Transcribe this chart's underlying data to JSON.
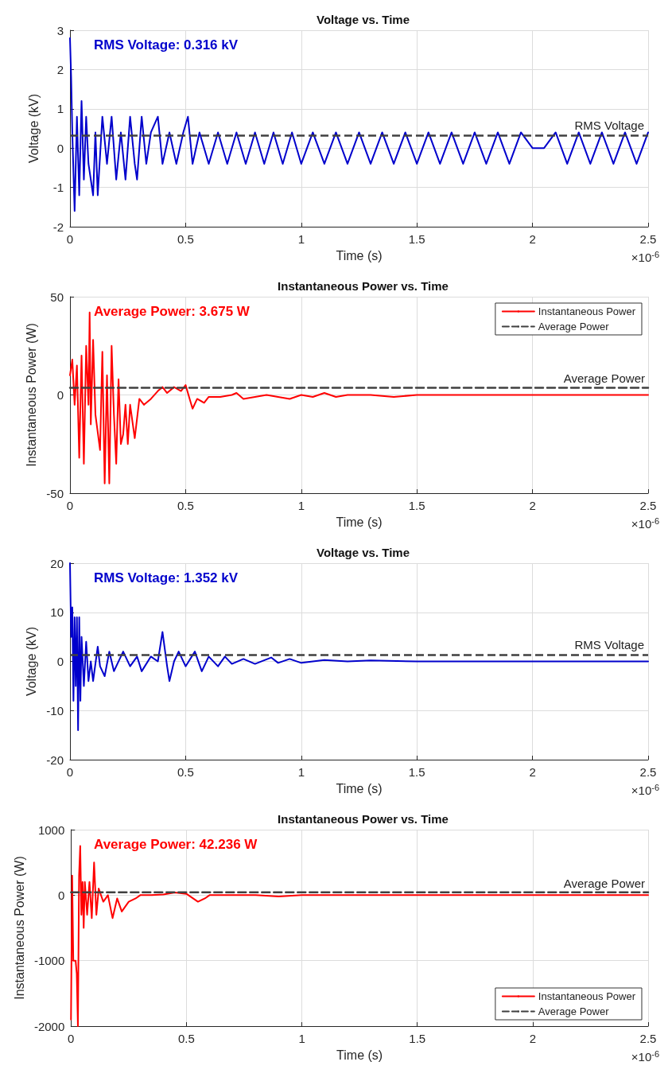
{
  "chart_data": [
    {
      "type": "line",
      "title": "Voltage vs. Time",
      "xlabel": "Time (s)",
      "ylabel": "Voltage (kV)",
      "xlim": [
        0,
        2.5
      ],
      "xticks": [
        0,
        0.5,
        1,
        1.5,
        2,
        2.5
      ],
      "ylim": [
        -2,
        3
      ],
      "yticks": [
        -2,
        -1,
        0,
        1,
        2,
        3
      ],
      "grid": true,
      "legend": false,
      "line_style": "solid",
      "series": [
        {
          "color": "#0000cc",
          "x": [
            0,
            0.005,
            0.01,
            0.02,
            0.03,
            0.04,
            0.05,
            0.06,
            0.07,
            0.08,
            0.1,
            0.11,
            0.12,
            0.14,
            0.16,
            0.18,
            0.2,
            0.22,
            0.24,
            0.26,
            0.28,
            0.29,
            0.31,
            0.33,
            0.35,
            0.38,
            0.4,
            0.43,
            0.46,
            0.49,
            0.51,
            0.53,
            0.56,
            0.6,
            0.64,
            0.68,
            0.72,
            0.76,
            0.8,
            0.84,
            0.88,
            0.92,
            0.96,
            1,
            1.05,
            1.1,
            1.15,
            1.2,
            1.25,
            1.3,
            1.35,
            1.4,
            1.45,
            1.5,
            1.55,
            1.6,
            1.65,
            1.7,
            1.75,
            1.8,
            1.85,
            1.9,
            1.95,
            2,
            2.05,
            2.1,
            2.15,
            2.2,
            2.25,
            2.3,
            2.35,
            2.4,
            2.45,
            2.5
          ],
          "values": [
            2.8,
            1.8,
            0.4,
            -1.6,
            0.8,
            -1.2,
            1.2,
            -0.8,
            0.8,
            -0.4,
            -1.2,
            0.4,
            -1.2,
            0.8,
            -0.4,
            0.8,
            -0.8,
            0.4,
            -0.8,
            0.8,
            -0.4,
            -0.8,
            0.8,
            -0.4,
            0.4,
            0.8,
            -0.4,
            0.4,
            -0.4,
            0.4,
            0.8,
            -0.4,
            0.4,
            -0.4,
            0.4,
            -0.4,
            0.4,
            -0.4,
            0.4,
            -0.4,
            0.4,
            -0.4,
            0.4,
            -0.4,
            0.4,
            -0.4,
            0.4,
            -0.4,
            0.4,
            -0.4,
            0.4,
            -0.4,
            0.4,
            -0.4,
            0.4,
            -0.4,
            0.4,
            -0.4,
            0.4,
            -0.4,
            0.4,
            -0.4,
            0.4,
            0,
            0,
            0.4,
            -0.4,
            0.4,
            -0.4,
            0.4,
            -0.4,
            0.4,
            -0.4,
            0.4
          ]
        }
      ],
      "ref_lines": [
        {
          "axis": "y",
          "value": 0.316,
          "label": "RMS Voltage",
          "color": "#404040",
          "line_style": "dashed"
        }
      ],
      "annotations": [
        "RMS Voltage: 0.316 kV",
        "×10$^{-6}$"
      ]
    },
    {
      "type": "line",
      "title": "Instantaneous Power vs. Time",
      "xlabel": "Time (s)",
      "ylabel": "Instantaneous Power (W)",
      "xlim": [
        0,
        2.5
      ],
      "xticks": [
        0,
        0.5,
        1,
        1.5,
        2,
        2.5
      ],
      "ylim": [
        -50,
        50
      ],
      "yticks": [
        -50,
        0,
        50
      ],
      "grid": true,
      "legend": "top right",
      "series": [
        {
          "name": "Instantaneous Power",
          "color": "#ff0000",
          "line_style": "solid",
          "x": [
            0,
            0.01,
            0.02,
            0.03,
            0.04,
            0.05,
            0.06,
            0.07,
            0.08,
            0.085,
            0.09,
            0.1,
            0.11,
            0.13,
            0.14,
            0.15,
            0.16,
            0.17,
            0.18,
            0.19,
            0.2,
            0.21,
            0.22,
            0.23,
            0.24,
            0.25,
            0.26,
            0.28,
            0.3,
            0.32,
            0.35,
            0.38,
            0.4,
            0.42,
            0.45,
            0.48,
            0.5,
            0.52,
            0.53,
            0.55,
            0.58,
            0.6,
            0.65,
            0.7,
            0.72,
            0.75,
            0.8,
            0.85,
            0.9,
            0.95,
            1,
            1.05,
            1.1,
            1.15,
            1.2,
            1.3,
            1.4,
            1.5,
            1.6,
            1.75,
            2,
            2.5
          ],
          "values": [
            10,
            18,
            -5,
            15,
            -32,
            20,
            -35,
            25,
            -5,
            42,
            -15,
            28,
            -10,
            -28,
            22,
            -45,
            10,
            -45,
            25,
            -10,
            -35,
            8,
            -25,
            -20,
            -5,
            -25,
            -5,
            -22,
            -2,
            -5,
            -2,
            2,
            4,
            1,
            4,
            2,
            5,
            -3,
            -7,
            -2,
            -4,
            -1,
            -1,
            0,
            1,
            -2,
            -1,
            0,
            -1,
            -2,
            0,
            -1,
            1,
            -1,
            0,
            0,
            -1,
            0,
            0,
            0,
            0,
            0
          ]
        },
        {
          "name": "Average Power",
          "color": "#404040",
          "line_style": "dashed",
          "x": [
            0,
            2.5
          ],
          "values": [
            3.675,
            3.675
          ]
        }
      ],
      "annotations": [
        "Average Power: 3.675 W",
        "×10$^{-6}$",
        {
          "text": "Average Power",
          "x": 2.5,
          "y": 3.675
        }
      ]
    },
    {
      "type": "line",
      "title": "Voltage vs. Time",
      "xlabel": "Time (s)",
      "ylabel": "Voltage (kV)",
      "xlim": [
        0,
        2.5
      ],
      "xticks": [
        0,
        0.5,
        1,
        1.5,
        2,
        2.5
      ],
      "ylim": [
        -20,
        20
      ],
      "yticks": [
        -20,
        -10,
        0,
        10,
        20
      ],
      "grid": true,
      "legend": false,
      "line_style": "solid",
      "series": [
        {
          "color": "#0000cc",
          "x": [
            0,
            0.005,
            0.01,
            0.015,
            0.02,
            0.025,
            0.03,
            0.035,
            0.04,
            0.045,
            0.05,
            0.06,
            0.07,
            0.08,
            0.09,
            0.1,
            0.12,
            0.13,
            0.15,
            0.17,
            0.19,
            0.23,
            0.26,
            0.29,
            0.31,
            0.35,
            0.38,
            0.4,
            0.42,
            0.43,
            0.45,
            0.47,
            0.5,
            0.54,
            0.57,
            0.6,
            0.64,
            0.67,
            0.7,
            0.75,
            0.8,
            0.87,
            0.9,
            0.95,
            1,
            1.1,
            1.2,
            1.3,
            1.5,
            1.8,
            2.5
          ],
          "values": [
            20,
            5,
            11,
            -8,
            9,
            -5,
            9,
            -14,
            9,
            -8,
            5,
            -5,
            4,
            -4,
            0,
            -4,
            3,
            -1,
            -3,
            2,
            -2,
            2,
            -1,
            1,
            -2,
            1,
            0,
            6,
            -1,
            -4,
            0,
            2,
            -1,
            2,
            -2,
            1,
            -1,
            1,
            -0.5,
            0.5,
            -0.5,
            0.8,
            -0.3,
            0.5,
            -0.3,
            0.3,
            0,
            0.2,
            0,
            0,
            0
          ]
        }
      ],
      "ref_lines": [
        {
          "axis": "y",
          "value": 1.352,
          "label": "RMS Voltage",
          "color": "#404040",
          "line_style": "dashed"
        }
      ],
      "annotations": [
        "RMS Voltage: 1.352 kV",
        "×10$^{-6}$"
      ]
    },
    {
      "type": "line",
      "title": "Instantaneous Power vs. Time",
      "xlabel": "Time (s)",
      "ylabel": "Instantaneous Power (W)",
      "xlim": [
        0,
        2.5
      ],
      "xticks": [
        0,
        0.5,
        1,
        1.5,
        2,
        2.5
      ],
      "ylim": [
        -2000,
        1000
      ],
      "yticks": [
        -2000,
        -1000,
        0,
        1000
      ],
      "grid": true,
      "legend": "bottom right",
      "series": [
        {
          "name": "Instantaneous Power",
          "color": "#ff0000",
          "line_style": "solid",
          "x": [
            0,
            0.005,
            0.01,
            0.02,
            0.025,
            0.03,
            0.035,
            0.04,
            0.045,
            0.05,
            0.055,
            0.06,
            0.07,
            0.08,
            0.09,
            0.1,
            0.11,
            0.12,
            0.14,
            0.16,
            0.18,
            0.2,
            0.22,
            0.25,
            0.28,
            0.3,
            0.35,
            0.4,
            0.45,
            0.5,
            0.55,
            0.58,
            0.6,
            0.7,
            0.8,
            0.9,
            1,
            1.2,
            2.5
          ],
          "values": [
            -1900,
            300,
            -1000,
            -1000,
            -1200,
            -2000,
            300,
            750,
            -300,
            200,
            -500,
            200,
            -300,
            200,
            -350,
            500,
            -300,
            100,
            -100,
            0,
            -350,
            -50,
            -250,
            -100,
            -50,
            0,
            0,
            10,
            40,
            20,
            -100,
            -50,
            0,
            0,
            0,
            -20,
            0,
            0,
            0
          ]
        },
        {
          "name": "Average Power",
          "color": "#404040",
          "line_style": "dashed",
          "x": [
            0,
            2.5
          ],
          "values": [
            42.236,
            42.236
          ]
        }
      ],
      "annotations": [
        "Average Power: 42.236 W",
        "×10$^{-6}$",
        {
          "text": "Average Power",
          "x": 2.5,
          "y": 42.236
        }
      ]
    }
  ]
}
